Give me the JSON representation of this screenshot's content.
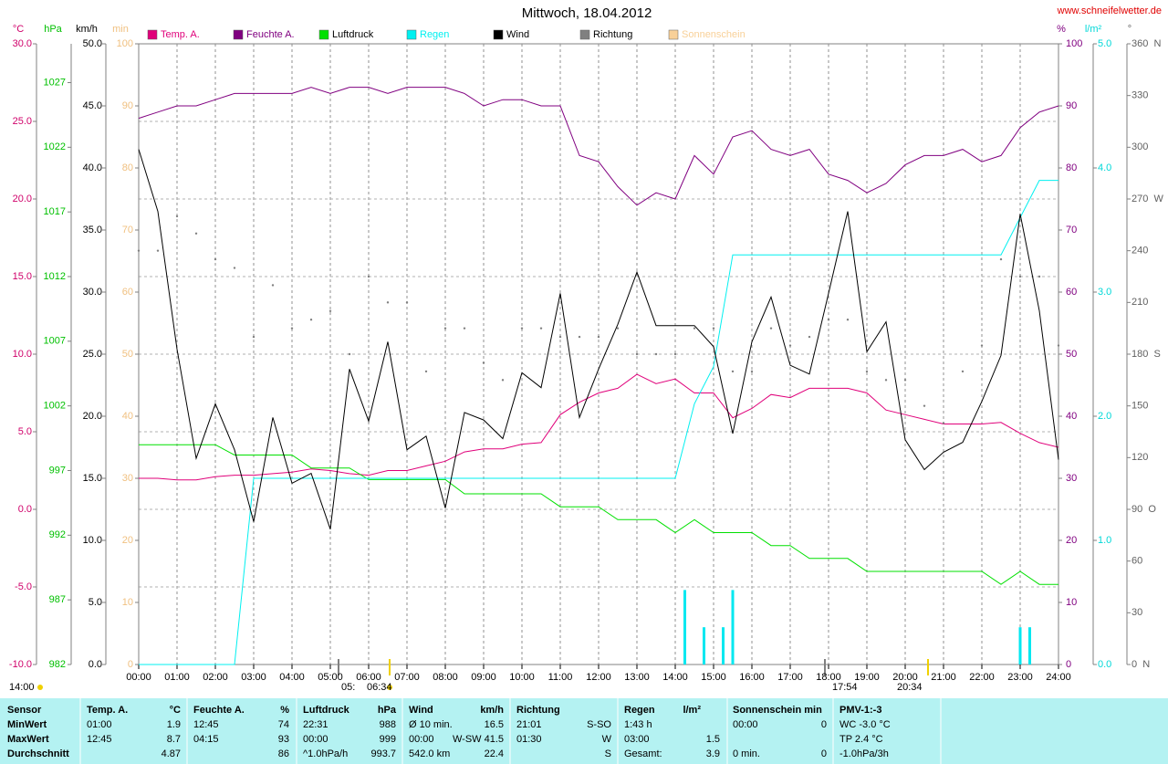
{
  "chart_data": {
    "type": "line",
    "title": "Mittwoch, 18.04.2012",
    "source": "www.schneifelwetter.de",
    "xlim": [
      0,
      24
    ],
    "xticks": [
      {
        "value": 0,
        "label": "00:00"
      },
      {
        "value": 1,
        "label": "01:00"
      },
      {
        "value": 2,
        "label": "02:00"
      },
      {
        "value": 3,
        "label": "03:00"
      },
      {
        "value": 4,
        "label": "04:00"
      },
      {
        "value": 5,
        "label": "05:00"
      },
      {
        "value": 6,
        "label": "06:00"
      },
      {
        "value": 7,
        "label": "07:00"
      },
      {
        "value": 8,
        "label": "08:00"
      },
      {
        "value": 9,
        "label": "09:00"
      },
      {
        "value": 10,
        "label": "10:00"
      },
      {
        "value": 11,
        "label": "11:00"
      },
      {
        "value": 12,
        "label": "12:00"
      },
      {
        "value": 13,
        "label": "13:00"
      },
      {
        "value": 14,
        "label": "14:00"
      },
      {
        "value": 15,
        "label": "15:00"
      },
      {
        "value": 16,
        "label": "16:00"
      },
      {
        "value": 17,
        "label": "17:00"
      },
      {
        "value": 18,
        "label": "18:00"
      },
      {
        "value": 19,
        "label": "19:00"
      },
      {
        "value": 20,
        "label": "20:00"
      },
      {
        "value": 21,
        "label": "21:00"
      },
      {
        "value": 22,
        "label": "22:00"
      },
      {
        "value": 23,
        "label": "23:00"
      },
      {
        "value": 24,
        "label": "24:00"
      }
    ],
    "grid": true,
    "y_axes": {
      "temp": {
        "unit": "°C",
        "color": "#d0006a",
        "ylim": [
          -10,
          30
        ],
        "yticks": [
          {
            "value": -10,
            "label": "-10.0"
          },
          {
            "value": -5,
            "label": "-5.0"
          },
          {
            "value": 0,
            "label": "0.0"
          },
          {
            "value": 5,
            "label": "5.0"
          },
          {
            "value": 10,
            "label": "10.0"
          },
          {
            "value": 15,
            "label": "15.0"
          },
          {
            "value": 20,
            "label": "20.0"
          },
          {
            "value": 25,
            "label": "25.0"
          },
          {
            "value": 30,
            "label": "30.0"
          }
        ]
      },
      "press": {
        "unit": "hPa",
        "color": "#00c000",
        "ylim": [
          982,
          1030
        ],
        "yticks": [
          982,
          987,
          992,
          997,
          1002,
          1007,
          1012,
          1017,
          1022,
          1027
        ]
      },
      "wind": {
        "unit": "km/h",
        "color": "#000000",
        "ylim": [
          0,
          50
        ],
        "yticks": [
          {
            "value": 0,
            "label": "0.0"
          },
          {
            "value": 5,
            "label": "5.0"
          },
          {
            "value": 10,
            "label": "10.0"
          },
          {
            "value": 15,
            "label": "15.0"
          },
          {
            "value": 20,
            "label": "20.0"
          },
          {
            "value": 25,
            "label": "25.0"
          },
          {
            "value": 30,
            "label": "30.0"
          },
          {
            "value": 35,
            "label": "35.0"
          },
          {
            "value": 40,
            "label": "40.0"
          },
          {
            "value": 45,
            "label": "45.0"
          },
          {
            "value": 50,
            "label": "50.0"
          }
        ]
      },
      "sun": {
        "unit": "min",
        "color": "#f0c080",
        "ylim": [
          0,
          100
        ],
        "yticks": [
          0,
          10,
          20,
          30,
          40,
          50,
          60,
          70,
          80,
          90,
          100
        ]
      },
      "hum": {
        "unit": "%",
        "color": "#800080",
        "ylim": [
          0,
          100
        ],
        "yticks": [
          0,
          10,
          20,
          30,
          40,
          50,
          60,
          70,
          80,
          90,
          100
        ]
      },
      "rain": {
        "unit": "l/m²",
        "color": "#00d8d8",
        "ylim": [
          0,
          5
        ],
        "yticks": [
          {
            "value": 0,
            "label": "0.0"
          },
          {
            "value": 1,
            "label": "1.0"
          },
          {
            "value": 2,
            "label": "2.0"
          },
          {
            "value": 3,
            "label": "3.0"
          },
          {
            "value": 4,
            "label": "4.0"
          },
          {
            "value": 5,
            "label": "5.0"
          }
        ]
      },
      "dir": {
        "unit": "°",
        "color": "#606060",
        "ylim": [
          0,
          360
        ],
        "yticks": [
          {
            "value": 0,
            "label": "0  N"
          },
          30,
          60,
          {
            "value": 90,
            "label": "90  O"
          },
          120,
          150,
          {
            "value": 180,
            "label": "180  S"
          },
          210,
          240,
          {
            "value": 270,
            "label": "270  W"
          },
          300,
          330,
          {
            "value": 360,
            "label": "360  N"
          }
        ]
      }
    },
    "x": [
      0,
      0.5,
      1,
      1.5,
      2,
      2.5,
      3,
      3.5,
      4,
      4.5,
      5,
      5.5,
      6,
      6.5,
      7,
      7.5,
      8,
      8.5,
      9,
      9.5,
      10,
      10.5,
      11,
      11.5,
      12,
      12.5,
      13,
      13.5,
      14,
      14.5,
      15,
      15.5,
      16,
      16.5,
      17,
      17.5,
      18,
      18.5,
      19,
      19.5,
      20,
      20.5,
      21,
      21.5,
      22,
      22.5,
      23,
      23.5,
      24
    ],
    "series": [
      {
        "name": "Temp. A.",
        "color": "#e0007a",
        "axis": "temp",
        "values": [
          2.0,
          2.0,
          1.9,
          1.9,
          2.1,
          2.2,
          2.2,
          2.3,
          2.4,
          2.6,
          2.5,
          2.3,
          2.2,
          2.5,
          2.5,
          2.8,
          3.1,
          3.7,
          3.9,
          3.9,
          4.2,
          4.3,
          6.1,
          6.9,
          7.5,
          7.8,
          8.7,
          8.1,
          8.4,
          7.5,
          7.5,
          5.9,
          6.5,
          7.4,
          7.2,
          7.8,
          7.8,
          7.8,
          7.5,
          6.4,
          6.1,
          5.8,
          5.5,
          5.5,
          5.5,
          5.6,
          4.9,
          4.3,
          4.0
        ]
      },
      {
        "name": "Feuchte A.",
        "color": "#800080",
        "axis": "hum",
        "values": [
          88,
          89,
          90,
          90,
          91,
          92,
          92,
          92,
          92,
          93,
          92,
          93,
          93,
          92,
          93,
          93,
          93,
          92,
          90,
          91,
          91,
          90,
          90,
          82,
          81,
          77,
          74,
          76,
          75,
          82,
          79,
          85,
          86,
          83,
          82,
          83,
          79,
          78,
          76,
          77.5,
          80.5,
          82,
          82,
          83,
          81,
          82,
          86.5,
          89,
          90
        ]
      },
      {
        "name": "Luftdruck",
        "color": "#00e000",
        "axis": "press",
        "values": [
          999,
          999,
          999,
          999,
          999,
          998.2,
          998.2,
          998.2,
          998.2,
          997.2,
          997.2,
          997.2,
          996.3,
          996.3,
          996.3,
          996.3,
          996.3,
          995.2,
          995.2,
          995.2,
          995.2,
          995.2,
          994.2,
          994.2,
          994.2,
          993.2,
          993.2,
          993.2,
          992.2,
          993.2,
          992.2,
          992.2,
          992.2,
          991.2,
          991.2,
          990.2,
          990.2,
          990.2,
          989.2,
          989.2,
          989.2,
          989.2,
          989.2,
          989.2,
          989.2,
          988.2,
          989.2,
          988.2,
          988.2
        ]
      },
      {
        "name": "Regen",
        "color": "#00f0f0",
        "axis": "rain",
        "values": [
          0,
          0,
          0,
          0,
          0,
          0,
          1.5,
          1.5,
          1.5,
          1.5,
          1.5,
          1.5,
          1.5,
          1.5,
          1.5,
          1.5,
          1.5,
          1.5,
          1.5,
          1.5,
          1.5,
          1.5,
          1.5,
          1.5,
          1.5,
          1.5,
          1.5,
          1.5,
          1.5,
          2.1,
          2.4,
          3.3,
          3.3,
          3.3,
          3.3,
          3.3,
          3.3,
          3.3,
          3.3,
          3.3,
          3.3,
          3.3,
          3.3,
          3.3,
          3.3,
          3.3,
          3.6,
          3.9,
          3.9
        ]
      },
      {
        "name": "Wind",
        "color": "#000000",
        "axis": "wind",
        "values": [
          41.5,
          36.5,
          25.4,
          16.6,
          21,
          17.3,
          11.5,
          19.9,
          14.6,
          15.4,
          10.9,
          23.8,
          19.6,
          26,
          17.3,
          18.4,
          12.6,
          20.3,
          19.7,
          18.2,
          23.5,
          22.3,
          29.9,
          19.9,
          23.8,
          27.4,
          31.6,
          27.3,
          27.3,
          27.3,
          25.6,
          18.6,
          26,
          29.6,
          24.1,
          23.4,
          29.9,
          36.5,
          25.2,
          27.6,
          18.1,
          15.7,
          17.1,
          17.9,
          21.2,
          24.9,
          36.3,
          28.5,
          16.5
        ]
      },
      {
        "name": "Richtung",
        "color": "#808080",
        "axis": "dir",
        "dots": true,
        "values": [
          240,
          240,
          260,
          250,
          235,
          230,
          190,
          220,
          195,
          200,
          205,
          180,
          225,
          210,
          210,
          170,
          195,
          195,
          175,
          165,
          195,
          195,
          190,
          190,
          190,
          195,
          180,
          180,
          180,
          195,
          195,
          170,
          170,
          195,
          185,
          190,
          200,
          200,
          170,
          165,
          165,
          150,
          140,
          170,
          185,
          235,
          225,
          225,
          185
        ]
      },
      {
        "name": "Sonnenschein",
        "color": "#f8d098",
        "axis": "sun"
      }
    ],
    "rain_bars": {
      "color": "#00e8f0",
      "axis": "rain",
      "x": [
        14.25,
        14.75,
        15.25,
        15.5,
        23.0,
        23.25
      ],
      "values": [
        0.6,
        0.3,
        0.3,
        0.6,
        0.3,
        0.3
      ]
    },
    "annotations": [
      "14:00",
      "05:",
      "06:34",
      "17:54",
      "20:34"
    ]
  },
  "table": {
    "rows": [
      [
        {
          "l": "Sensor"
        },
        {
          "l": "Temp. A.",
          "r": "°C"
        },
        {
          "l": "Feuchte A.",
          "r": "%"
        },
        {
          "l": "Luftdruck",
          "r": "hPa"
        },
        {
          "l": "Wind",
          "r": "km/h"
        },
        {
          "l": "Richtung"
        },
        {
          "l": "Regen",
          "r": "l/m²"
        },
        {
          "l": "Sonnenschein min"
        },
        {
          "l": "PMV-1:-3"
        }
      ],
      [
        {
          "l": "MinWert"
        },
        {
          "l": "01:00",
          "r": "1.9"
        },
        {
          "l": "12:45",
          "r": "74"
        },
        {
          "l": "22:31",
          "r": "988"
        },
        {
          "l": "Ø 10 min.",
          "r": "16.5"
        },
        {
          "l": "21:01",
          "r": "S-SO"
        },
        {
          "l": "1:43 h"
        },
        {
          "l": "00:00",
          "r": "0"
        },
        {
          "l": "WC -3.0 °C"
        }
      ],
      [
        {
          "l": "MaxWert"
        },
        {
          "l": "12:45",
          "r": "8.7"
        },
        {
          "l": "04:15",
          "r": "93"
        },
        {
          "l": "00:00",
          "r": "999"
        },
        {
          "l": "00:00",
          "m": "W-SW",
          "r": "41.5"
        },
        {
          "l": "01:30",
          "r": "W"
        },
        {
          "l": "03:00",
          "r": "1.5"
        },
        {},
        {
          "l": "TP 2.4 °C"
        }
      ],
      [
        {
          "l": "Durchschnitt"
        },
        {
          "r": "4.87"
        },
        {
          "r": "86"
        },
        {
          "l": "^1.0hPa/h",
          "r": "993.7"
        },
        {
          "l": "542.0 km",
          "r": "22.4"
        },
        {
          "r": "S"
        },
        {
          "l": "Gesamt:",
          "r": "3.9"
        },
        {
          "l": "0 min.",
          "r": "0"
        },
        {
          "l": "-1.0hPa/3h"
        }
      ]
    ]
  }
}
